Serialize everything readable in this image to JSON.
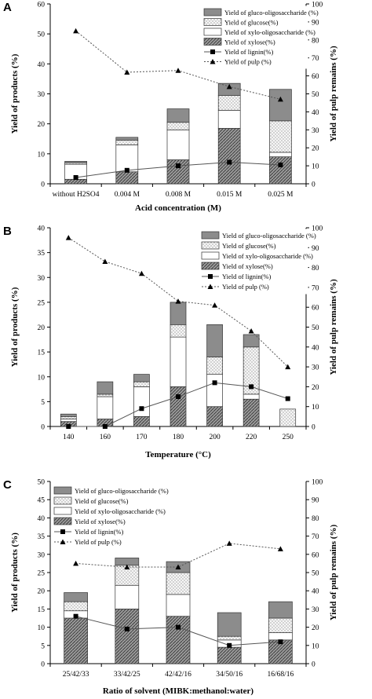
{
  "colors": {
    "gluco_oligo": "#8c8c8c",
    "xylose_fill": "#7a7a7a",
    "axis": "#000000",
    "lignin_line": "#555555",
    "pulp_line": "#555555"
  },
  "legend_labels": {
    "gluco_oligo": "Yield of gluco-oligosaccharide (%)",
    "glucose": "Yield of glucose(%)",
    "xylo_oligo": "Yield of xylo-oligosaccharide (%)",
    "xylose": "Yield of xylose(%)",
    "lignin": "Yield of lignin(%)",
    "pulp": "Yield of pulp (%)"
  },
  "chart_data": [
    {
      "panel": "A",
      "type": "bar",
      "xlabel": "Acid concentration (M)",
      "ylabel": "Yield of products (%)",
      "y2label": "Yield of pulp remains (%)",
      "ylim": [
        0,
        60
      ],
      "y2lim": [
        0,
        100
      ],
      "yticks": [
        0,
        10,
        20,
        30,
        40,
        50,
        60
      ],
      "y2ticks": [
        0,
        10,
        20,
        30,
        40,
        50,
        60,
        70,
        80,
        90,
        100
      ],
      "categories": [
        "without H2SO4",
        "0.004 M",
        "0.008 M",
        "0.015 M",
        "0.025 M"
      ],
      "stacked_series": [
        {
          "key": "xylose",
          "values": [
            1.5,
            4.0,
            8.0,
            18.5,
            9.0
          ]
        },
        {
          "key": "xylo_oligo",
          "values": [
            5.0,
            9.0,
            10.0,
            6.0,
            1.5
          ]
        },
        {
          "key": "glucose",
          "values": [
            0.5,
            1.5,
            2.5,
            5.0,
            10.5
          ]
        },
        {
          "key": "gluco_oligo",
          "values": [
            0.5,
            1.0,
            4.5,
            4.0,
            10.5
          ]
        }
      ],
      "line_series": [
        {
          "key": "lignin",
          "axis": "y2",
          "values": [
            3.5,
            7.5,
            10.0,
            12.0,
            10.5
          ]
        },
        {
          "key": "pulp",
          "axis": "y2",
          "values": [
            85,
            62,
            63,
            54,
            47
          ]
        }
      ],
      "legend_position": "top-right",
      "grid": false
    },
    {
      "panel": "B",
      "type": "bar",
      "xlabel": "Temperature (°C)",
      "ylabel": "Yield of products (%)",
      "y2label": "Yield of pulp remains (%)",
      "ylim": [
        0,
        40
      ],
      "y2lim": [
        0,
        100
      ],
      "yticks": [
        0,
        5,
        10,
        15,
        20,
        25,
        30,
        35,
        40
      ],
      "y2ticks": [
        0,
        10,
        20,
        30,
        40,
        50,
        60,
        70,
        80,
        90,
        100
      ],
      "categories": [
        "140",
        "160",
        "170",
        "180",
        "200",
        "220",
        "250"
      ],
      "stacked_series": [
        {
          "key": "xylose",
          "values": [
            1.0,
            1.5,
            2.0,
            8.0,
            4.0,
            5.5,
            0.0
          ]
        },
        {
          "key": "xylo_oligo",
          "values": [
            0.5,
            4.5,
            6.0,
            10.0,
            6.5,
            1.0,
            0.0
          ]
        },
        {
          "key": "glucose",
          "values": [
            0.5,
            0.5,
            1.0,
            2.5,
            3.5,
            9.5,
            3.5
          ]
        },
        {
          "key": "gluco_oligo",
          "values": [
            0.5,
            2.5,
            1.5,
            4.5,
            6.5,
            2.5,
            0.0
          ]
        }
      ],
      "line_series": [
        {
          "key": "lignin",
          "axis": "y2",
          "values": [
            0,
            0,
            9,
            15,
            22,
            20,
            14
          ]
        },
        {
          "key": "pulp",
          "axis": "y2",
          "values": [
            95,
            83,
            77,
            63,
            61,
            48,
            30
          ]
        }
      ],
      "legend_position": "top-right",
      "grid": false
    },
    {
      "panel": "C",
      "type": "bar",
      "xlabel": "Ratio of solvent (MIBK:methanol:water)",
      "ylabel": "Yield of products (%)",
      "y2label": "Yield of pulp remains (%)",
      "ylim": [
        0,
        50
      ],
      "y2lim": [
        0,
        100
      ],
      "yticks": [
        0,
        5,
        10,
        15,
        20,
        25,
        30,
        35,
        40,
        45,
        50
      ],
      "y2ticks": [
        0,
        10,
        20,
        30,
        40,
        50,
        60,
        70,
        80,
        90,
        100
      ],
      "categories": [
        "25/42/33",
        "33/42/25",
        "42/42/16",
        "34/50/16",
        "16/68/16"
      ],
      "stacked_series": [
        {
          "key": "xylose",
          "values": [
            12.5,
            15.0,
            13.0,
            4.5,
            6.5
          ]
        },
        {
          "key": "xylo_oligo",
          "values": [
            2.0,
            6.5,
            6.0,
            2.0,
            2.0
          ]
        },
        {
          "key": "glucose",
          "values": [
            2.5,
            5.5,
            6.0,
            1.0,
            4.0
          ]
        },
        {
          "key": "gluco_oligo",
          "values": [
            2.5,
            2.0,
            3.0,
            6.5,
            4.5
          ]
        }
      ],
      "line_series": [
        {
          "key": "lignin",
          "axis": "y2",
          "values": [
            26,
            19,
            20,
            10,
            12
          ]
        },
        {
          "key": "pulp",
          "axis": "y2",
          "values": [
            55,
            53,
            53,
            66,
            63
          ]
        }
      ],
      "legend_position": "top-left",
      "grid": false
    }
  ]
}
